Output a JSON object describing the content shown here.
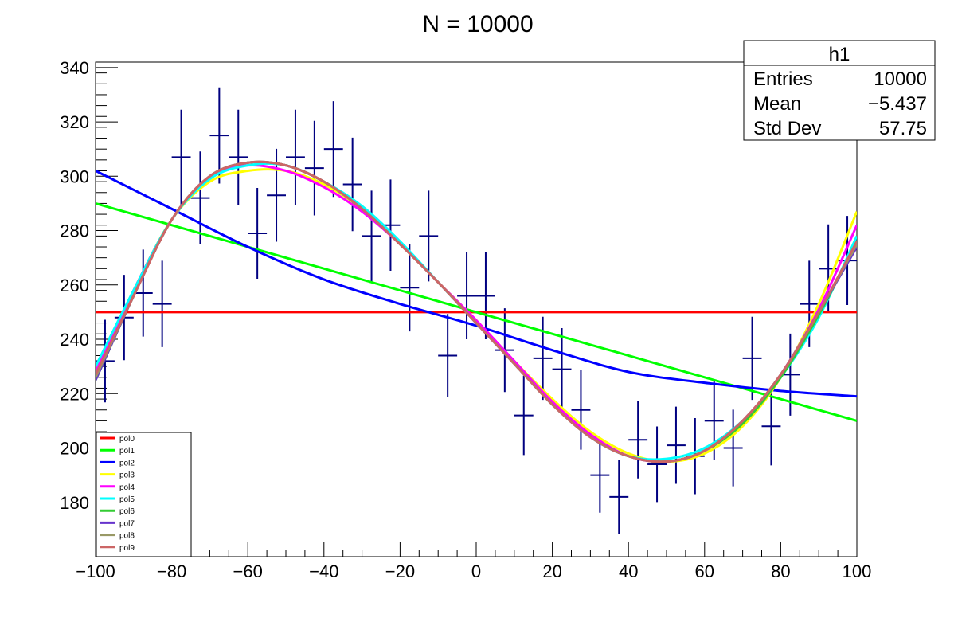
{
  "chart_data": {
    "type": "line",
    "title": "N = 10000",
    "xlim": [
      -100,
      100
    ],
    "ylim": [
      160,
      342
    ],
    "x_ticks": [
      -100,
      -80,
      -60,
      -40,
      -20,
      0,
      20,
      40,
      60,
      80,
      100
    ],
    "y_ticks": [
      180,
      200,
      220,
      240,
      260,
      280,
      300,
      320,
      340
    ],
    "x_tick_labels": [
      "−100",
      "−80",
      "−60",
      "−40",
      "−20",
      "0",
      "20",
      "40",
      "60",
      "80",
      "100"
    ],
    "y_tick_labels": [
      "180",
      "200",
      "220",
      "240",
      "260",
      "280",
      "300",
      "320",
      "340"
    ],
    "histogram": {
      "name": "h1",
      "color": "#000080",
      "bin_width": 5,
      "points": [
        {
          "x": -97.5,
          "y": 232,
          "err": 15.2
        },
        {
          "x": -92.5,
          "y": 248,
          "err": 15.7
        },
        {
          "x": -87.5,
          "y": 257,
          "err": 16.0
        },
        {
          "x": -82.5,
          "y": 253,
          "err": 15.9
        },
        {
          "x": -77.5,
          "y": 307,
          "err": 17.5
        },
        {
          "x": -72.5,
          "y": 292,
          "err": 17.1
        },
        {
          "x": -67.5,
          "y": 315,
          "err": 17.7
        },
        {
          "x": -62.5,
          "y": 307,
          "err": 17.5
        },
        {
          "x": -57.5,
          "y": 279,
          "err": 16.7
        },
        {
          "x": -52.5,
          "y": 293,
          "err": 17.1
        },
        {
          "x": -47.5,
          "y": 307,
          "err": 17.5
        },
        {
          "x": -42.5,
          "y": 303,
          "err": 17.4
        },
        {
          "x": -37.5,
          "y": 310,
          "err": 17.6
        },
        {
          "x": -32.5,
          "y": 297,
          "err": 17.2
        },
        {
          "x": -27.5,
          "y": 278,
          "err": 16.7
        },
        {
          "x": -22.5,
          "y": 282,
          "err": 16.8
        },
        {
          "x": -17.5,
          "y": 259,
          "err": 16.1
        },
        {
          "x": -12.5,
          "y": 278,
          "err": 16.7
        },
        {
          "x": -7.5,
          "y": 234,
          "err": 15.3
        },
        {
          "x": -2.5,
          "y": 256,
          "err": 16.0
        },
        {
          "x": 2.5,
          "y": 256,
          "err": 16.0
        },
        {
          "x": 7.5,
          "y": 236,
          "err": 15.4
        },
        {
          "x": 12.5,
          "y": 212,
          "err": 14.6
        },
        {
          "x": 17.5,
          "y": 233,
          "err": 15.3
        },
        {
          "x": 22.5,
          "y": 229,
          "err": 15.1
        },
        {
          "x": 27.5,
          "y": 214,
          "err": 14.6
        },
        {
          "x": 32.5,
          "y": 190,
          "err": 13.8
        },
        {
          "x": 37.5,
          "y": 182,
          "err": 13.5
        },
        {
          "x": 42.5,
          "y": 203,
          "err": 14.2
        },
        {
          "x": 47.5,
          "y": 194,
          "err": 13.9
        },
        {
          "x": 52.5,
          "y": 201,
          "err": 14.2
        },
        {
          "x": 57.5,
          "y": 197,
          "err": 14.0
        },
        {
          "x": 62.5,
          "y": 210,
          "err": 14.5
        },
        {
          "x": 67.5,
          "y": 200,
          "err": 14.1
        },
        {
          "x": 72.5,
          "y": 233,
          "err": 15.3
        },
        {
          "x": 77.5,
          "y": 208,
          "err": 14.4
        },
        {
          "x": 82.5,
          "y": 227,
          "err": 15.1
        },
        {
          "x": 87.5,
          "y": 253,
          "err": 15.9
        },
        {
          "x": 92.5,
          "y": 266,
          "err": 16.3
        },
        {
          "x": 97.5,
          "y": 269,
          "err": 16.4
        }
      ]
    },
    "series": [
      {
        "name": "pol0",
        "color": "#ff0000",
        "x": [
          -100,
          100
        ],
        "y": [
          250,
          250
        ]
      },
      {
        "name": "pol1",
        "color": "#00ff00",
        "x": [
          -100,
          100
        ],
        "y": [
          290,
          210
        ]
      },
      {
        "name": "pol2",
        "color": "#0000ff",
        "x": [
          -100,
          -80,
          -60,
          -40,
          -20,
          0,
          20,
          40,
          60,
          80,
          100
        ],
        "y": [
          302,
          288,
          274,
          262,
          253,
          245,
          236,
          228,
          224,
          221,
          219
        ]
      },
      {
        "name": "pol3",
        "color": "#ffff00",
        "x": [
          -100,
          -90,
          -80,
          -70,
          -60,
          -50,
          -40,
          -30,
          -20,
          -10,
          0,
          10,
          20,
          30,
          40,
          50,
          60,
          70,
          80,
          90,
          100
        ],
        "y": [
          228,
          258,
          284,
          298,
          302,
          302,
          297,
          288,
          275,
          261,
          247,
          232,
          218,
          206,
          198,
          195,
          198,
          208,
          226,
          253,
          287
        ]
      },
      {
        "name": "pol4",
        "color": "#ff00ff",
        "x": [
          -100,
          -90,
          -80,
          -70,
          -60,
          -50,
          -40,
          -30,
          -20,
          -10,
          0,
          10,
          20,
          30,
          40,
          50,
          60,
          70,
          80,
          90,
          100
        ],
        "y": [
          228,
          258,
          284,
          300,
          304,
          302,
          296,
          287,
          275,
          261,
          247,
          232,
          217,
          205,
          197,
          195,
          199,
          210,
          227,
          251,
          282
        ]
      },
      {
        "name": "pol5",
        "color": "#00ffff",
        "x": [
          -100,
          -90,
          -80,
          -70,
          -60,
          -50,
          -40,
          -30,
          -20,
          -10,
          0,
          10,
          20,
          30,
          40,
          50,
          60,
          70,
          80,
          90,
          100
        ],
        "y": [
          230,
          258,
          284,
          299,
          304,
          304,
          298,
          289,
          276,
          261,
          246,
          231,
          216,
          204,
          197,
          196,
          200,
          210,
          226,
          248,
          278
        ]
      },
      {
        "name": "pol6",
        "color": "#33cc33",
        "x": [
          -100,
          -90,
          -80,
          -70,
          -60,
          -50,
          -40,
          -30,
          -20,
          -10,
          0,
          10,
          20,
          30,
          40,
          50,
          60,
          70,
          80,
          90,
          100
        ],
        "y": [
          225,
          256,
          284,
          300,
          305,
          304,
          298,
          288,
          275,
          261,
          246,
          231,
          216,
          204,
          197,
          195,
          199,
          209,
          226,
          249,
          276
        ]
      },
      {
        "name": "pol7",
        "color": "#6633cc",
        "x": [
          -100,
          -90,
          -80,
          -70,
          -60,
          -50,
          -40,
          -30,
          -20,
          -10,
          0,
          10,
          20,
          30,
          40,
          50,
          60,
          70,
          80,
          90,
          100
        ],
        "y": [
          225,
          256,
          284,
          300,
          305,
          304,
          298,
          288,
          275,
          261,
          246,
          231,
          216,
          204,
          197,
          195,
          199,
          210,
          227,
          250,
          274
        ]
      },
      {
        "name": "pol8",
        "color": "#999966",
        "x": [
          -100,
          -90,
          -80,
          -70,
          -60,
          -50,
          -40,
          -30,
          -20,
          -10,
          0,
          10,
          20,
          30,
          40,
          50,
          60,
          70,
          80,
          90,
          100
        ],
        "y": [
          226,
          256,
          284,
          300,
          305,
          304,
          298,
          288,
          275,
          261,
          246,
          231,
          216,
          204,
          197,
          195,
          199,
          210,
          227,
          250,
          275
        ]
      },
      {
        "name": "pol9",
        "color": "#cc6666",
        "x": [
          -100,
          -90,
          -80,
          -70,
          -60,
          -50,
          -40,
          -30,
          -20,
          -10,
          0,
          10,
          20,
          30,
          40,
          50,
          60,
          70,
          80,
          90,
          100
        ],
        "y": [
          227,
          256,
          284,
          300,
          305,
          304,
          298,
          288,
          275,
          261,
          246,
          231,
          216,
          204,
          197,
          195,
          199,
          210,
          227,
          250,
          276
        ]
      }
    ],
    "legend_position": "bottom-left",
    "stats_box": {
      "title": "h1",
      "rows": [
        {
          "label": "Entries",
          "value": "10000"
        },
        {
          "label": "Mean",
          "value": "−5.437"
        },
        {
          "label": "Std Dev",
          "value": "57.75"
        }
      ],
      "position": "top-right"
    },
    "grid": false
  }
}
